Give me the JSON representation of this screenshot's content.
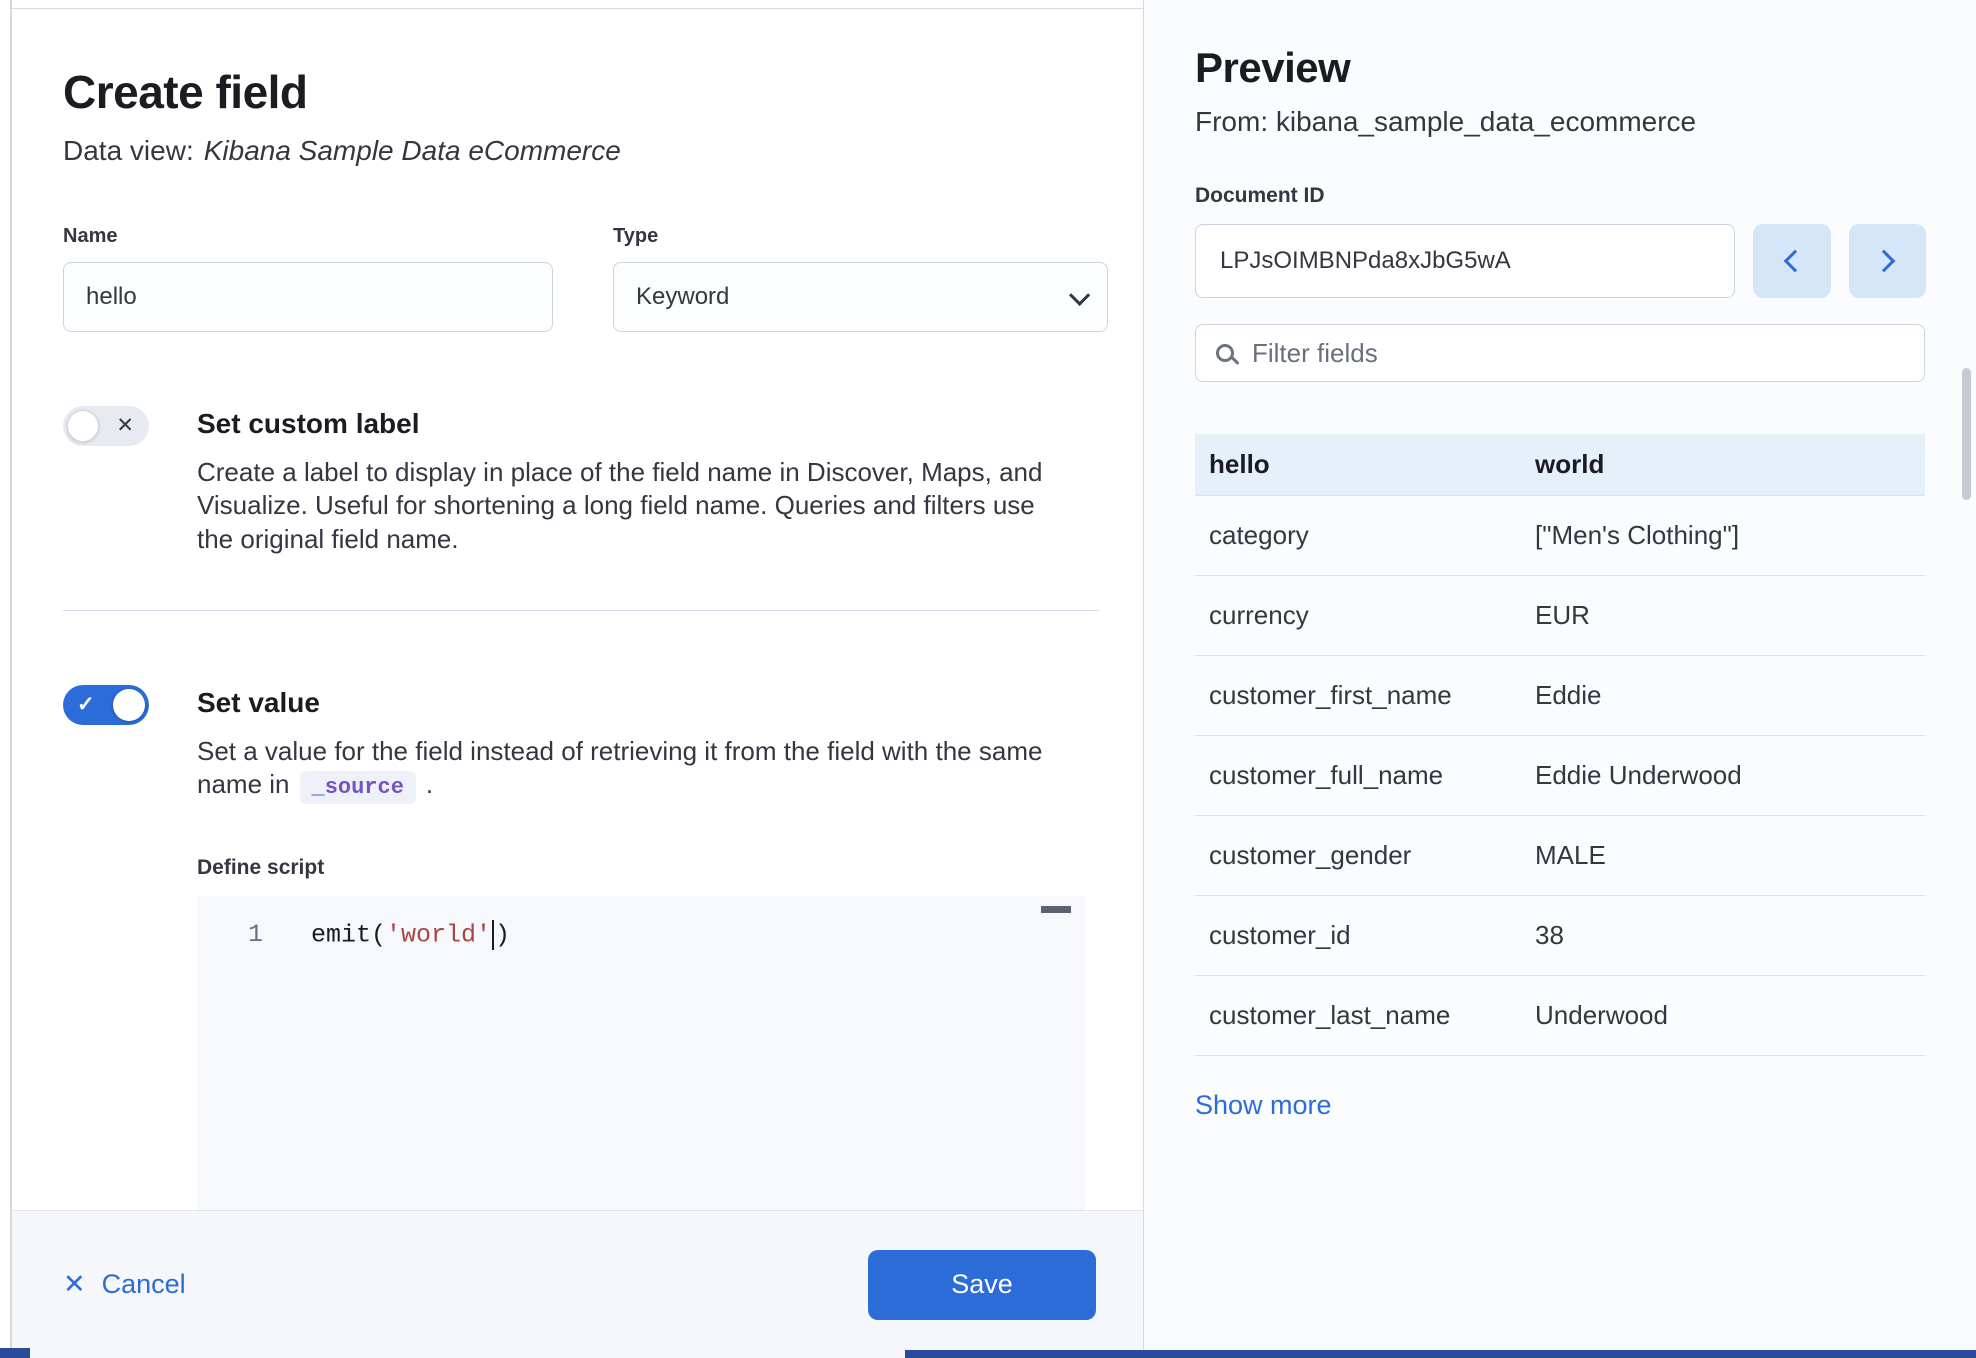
{
  "icons": {
    "toggle_off_x": "✕",
    "toggle_on_check": "✓",
    "close_x": "✕"
  },
  "colors": {
    "primary": "#2b6cd9",
    "link": "#2b6cd9",
    "code_string": "#a94442",
    "code_badge_text": "#7552c5",
    "table_header_bg": "#e6f0fb",
    "footer_bg": "#f5f7fa"
  },
  "flyout": {
    "title": "Create field",
    "subtitle_prefix": "Data view:",
    "subtitle_dataview": "Kibana Sample Data eCommerce",
    "name_field": {
      "label": "Name",
      "value": "hello"
    },
    "type_field": {
      "label": "Type",
      "value": "Keyword"
    },
    "custom_label": {
      "title": "Set custom label",
      "description": "Create a label to display in place of the field name in Discover, Maps, and Visualize. Useful for shortening a long field name. Queries and filters use the original field name."
    },
    "set_value": {
      "title": "Set value",
      "description_before": "Set a value for the field instead of retrieving it from the field with the same name in",
      "code_badge": "_source",
      "description_after": "."
    },
    "script": {
      "label": "Define script",
      "line_number": "1",
      "code_before": "emit(",
      "code_string": "'world'",
      "code_after": ")"
    },
    "footer": {
      "cancel_label": "Cancel",
      "save_label": "Save"
    }
  },
  "preview": {
    "title": "Preview",
    "from_label": "From: kibana_sample_data_ecommerce",
    "document_id": {
      "label": "Document ID",
      "value": "LPJsOIMBNPda8xJbG5wA"
    },
    "filter_placeholder": "Filter fields",
    "table": {
      "header": {
        "key": "hello",
        "value": "world"
      },
      "rows": [
        {
          "key": "category",
          "value": "[\"Men's Clothing\"]"
        },
        {
          "key": "currency",
          "value": "EUR"
        },
        {
          "key": "customer_first_name",
          "value": "Eddie"
        },
        {
          "key": "customer_full_name",
          "value": "Eddie Underwood"
        },
        {
          "key": "customer_gender",
          "value": "MALE"
        },
        {
          "key": "customer_id",
          "value": "38"
        },
        {
          "key": "customer_last_name",
          "value": "Underwood"
        }
      ]
    },
    "show_more_label": "Show more"
  }
}
